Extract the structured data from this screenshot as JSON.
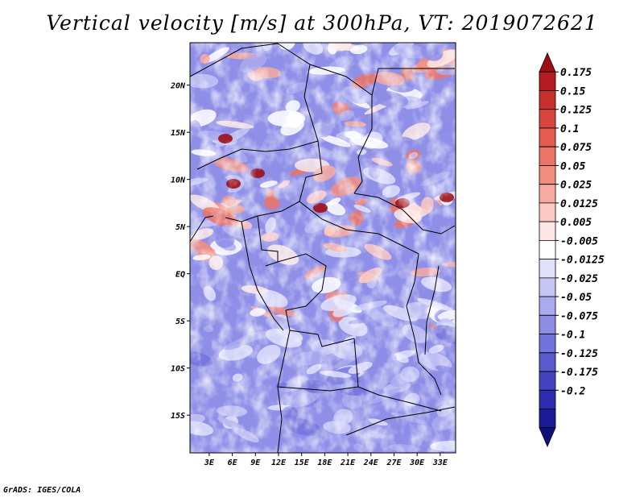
{
  "title": "Vertical velocity [m/s] at 300hPa, VT: 2019072621",
  "credit": "GrADS: IGES/COLA",
  "chart_data": {
    "type": "heatmap",
    "title": "Vertical velocity [m/s] at 300hPa, VT: 2019072621",
    "variable": "Vertical velocity",
    "units": "m/s",
    "level": "300hPa",
    "valid_time": "2019072621",
    "lon_range": [
      0.5,
      35.0
    ],
    "lat_range": [
      -19.0,
      24.5
    ],
    "x_ticks": [
      {
        "value": 3,
        "label": "3E"
      },
      {
        "value": 6,
        "label": "6E"
      },
      {
        "value": 9,
        "label": "9E"
      },
      {
        "value": 12,
        "label": "12E"
      },
      {
        "value": 15,
        "label": "15E"
      },
      {
        "value": 18,
        "label": "18E"
      },
      {
        "value": 21,
        "label": "21E"
      },
      {
        "value": 24,
        "label": "24E"
      },
      {
        "value": 27,
        "label": "27E"
      },
      {
        "value": 30,
        "label": "30E"
      },
      {
        "value": 33,
        "label": "33E"
      }
    ],
    "y_ticks": [
      {
        "value": 20,
        "label": "20N"
      },
      {
        "value": 15,
        "label": "15N"
      },
      {
        "value": 10,
        "label": "10N"
      },
      {
        "value": 5,
        "label": "5N"
      },
      {
        "value": 0,
        "label": "EQ"
      },
      {
        "value": -5,
        "label": "5S"
      },
      {
        "value": -10,
        "label": "10S"
      },
      {
        "value": -15,
        "label": "15S"
      }
    ],
    "colorbar": {
      "labels": [
        "0.175",
        "0.15",
        "0.125",
        "0.1",
        "0.075",
        "0.05",
        "0.025",
        "0.0125",
        "0.005",
        "-0.005",
        "-0.0125",
        "-0.025",
        "-0.05",
        "-0.075",
        "-0.1",
        "-0.125",
        "-0.175",
        "-0.2"
      ],
      "colors": [
        "#9b1018",
        "#b41c22",
        "#c8302d",
        "#d9453d",
        "#e45c50",
        "#ec7365",
        "#f28e80",
        "#f7aa9f",
        "#fbc9c2",
        "#fde7e4",
        "#ffffff",
        "#e0e0fb",
        "#c6c6f6",
        "#aaaaef",
        "#8d8de6",
        "#7373dc",
        "#5a5acf",
        "#4343c2",
        "#2c2cb0",
        "#1b1b98",
        "#0f0f7c"
      ]
    }
  }
}
